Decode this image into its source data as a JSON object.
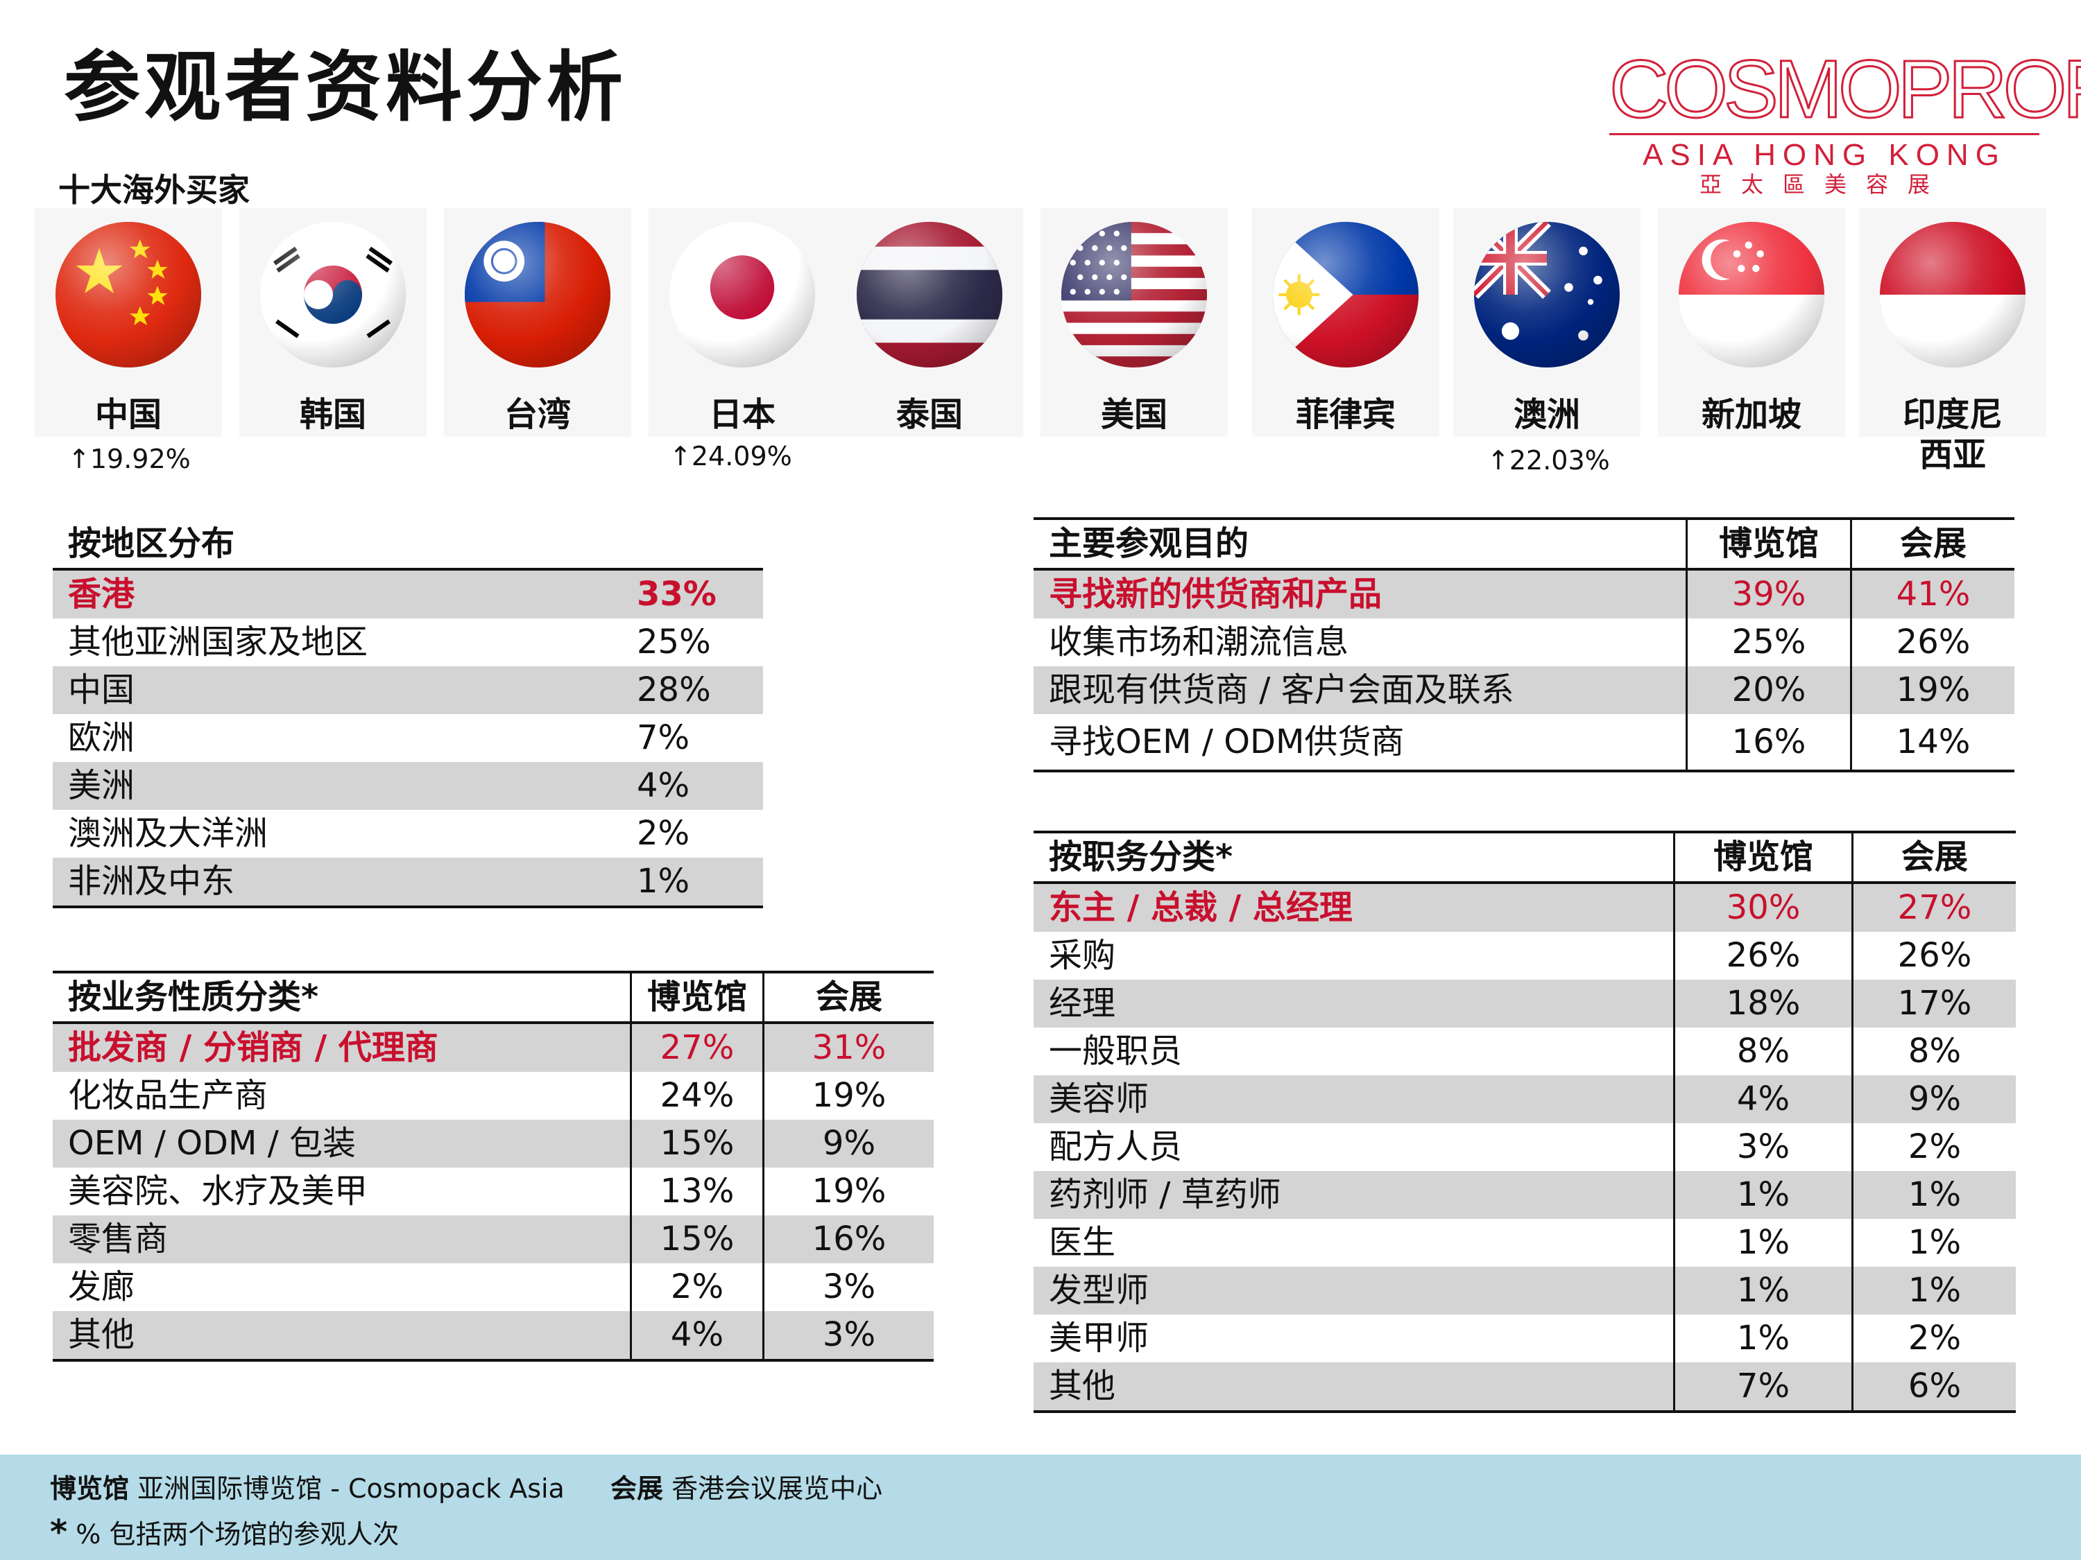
{
  "title": "参观者资料分析",
  "subtitle": "十大海外买家",
  "logo": {
    "brand": "COSMOPROF",
    "line2": "ASIA HONG KONG",
    "line3": "亞太區美容展"
  },
  "countries": [
    {
      "name": "中国",
      "growth": "↑19.92%",
      "flag": "china-flag-icon"
    },
    {
      "name": "韩国",
      "growth": "",
      "flag": "korea-flag-icon"
    },
    {
      "name": "台湾",
      "growth": "",
      "flag": "taiwan-flag-icon"
    },
    {
      "name": "日本",
      "growth": "↑24.09%",
      "flag": "japan-flag-icon"
    },
    {
      "name": "泰国",
      "growth": "",
      "flag": "thailand-flag-icon"
    },
    {
      "name": "美国",
      "growth": "",
      "flag": "usa-flag-icon"
    },
    {
      "name": "菲律宾",
      "growth": "",
      "flag": "philippines-flag-icon"
    },
    {
      "name": "澳洲",
      "growth": "↑22.03%",
      "flag": "australia-flag-icon"
    },
    {
      "name": "新加坡",
      "growth": "",
      "flag": "singapore-flag-icon"
    },
    {
      "name": "印度尼",
      "name2": "西亚",
      "growth": "",
      "flag": "indonesia-flag-icon"
    }
  ],
  "region": {
    "header": "按地区分布",
    "rows": [
      {
        "label": "香港",
        "value": "33%"
      },
      {
        "label": "其他亚洲国家及地区",
        "value": "25%"
      },
      {
        "label": "中国",
        "value": "28%"
      },
      {
        "label": "欧洲",
        "value": "7%"
      },
      {
        "label": "美洲",
        "value": "4%"
      },
      {
        "label": "澳洲及大洋洲",
        "value": "2%"
      },
      {
        "label": "非洲及中东",
        "value": "1%"
      }
    ]
  },
  "business": {
    "header": "按业务性质分类*",
    "col1": "博览馆",
    "col2": "会展",
    "rows": [
      {
        "label": "批发商 / 分销商 / 代理商",
        "a": "27%",
        "b": "31%"
      },
      {
        "label": "化妆品生产商",
        "a": "24%",
        "b": "19%"
      },
      {
        "label": "OEM / ODM / 包装",
        "a": "15%",
        "b": "9%"
      },
      {
        "label": "美容院、水疗及美甲",
        "a": "13%",
        "b": "19%"
      },
      {
        "label": "零售商",
        "a": "15%",
        "b": "16%"
      },
      {
        "label": "发廊",
        "a": "2%",
        "b": "3%"
      },
      {
        "label": "其他",
        "a": "4%",
        "b": "3%"
      }
    ]
  },
  "purpose": {
    "header": "主要参观目的",
    "col1": "博览馆",
    "col2": "会展",
    "rows": [
      {
        "label": "寻找新的供货商和产品",
        "a": "39%",
        "b": "41%"
      },
      {
        "label": "收集市场和潮流信息",
        "a": "25%",
        "b": "26%"
      },
      {
        "label": "跟现有供货商 / 客户会面及联系",
        "a": "20%",
        "b": "19%"
      },
      {
        "label": "寻找OEM / ODM供货商",
        "a": "16%",
        "b": "14%"
      }
    ]
  },
  "jobs": {
    "header": "按职务分类*",
    "col1": "博览馆",
    "col2": "会展",
    "rows": [
      {
        "label": "东主 / 总裁 / 总经理",
        "a": "30%",
        "b": "27%"
      },
      {
        "label": "采购",
        "a": "26%",
        "b": "26%"
      },
      {
        "label": "经理",
        "a": "18%",
        "b": "17%"
      },
      {
        "label": "一般职员",
        "a": "8%",
        "b": "8%"
      },
      {
        "label": "美容师",
        "a": "4%",
        "b": "9%"
      },
      {
        "label": "配方人员",
        "a": "3%",
        "b": "2%"
      },
      {
        "label": "药剂师 / 草药师",
        "a": "1%",
        "b": "1%"
      },
      {
        "label": "医生",
        "a": "1%",
        "b": "1%"
      },
      {
        "label": "发型师",
        "a": "1%",
        "b": "1%"
      },
      {
        "label": "美甲师",
        "a": "1%",
        "b": "2%"
      },
      {
        "label": "其他",
        "a": "7%",
        "b": "6%"
      }
    ]
  },
  "footer": {
    "k1": "博览馆",
    "v1": "亚洲国际博览馆 - Cosmopack Asia",
    "k2": "会展",
    "v2": "香港会议展览中心",
    "star": "*",
    "note": "% 包括两个场馆的参观人次"
  }
}
